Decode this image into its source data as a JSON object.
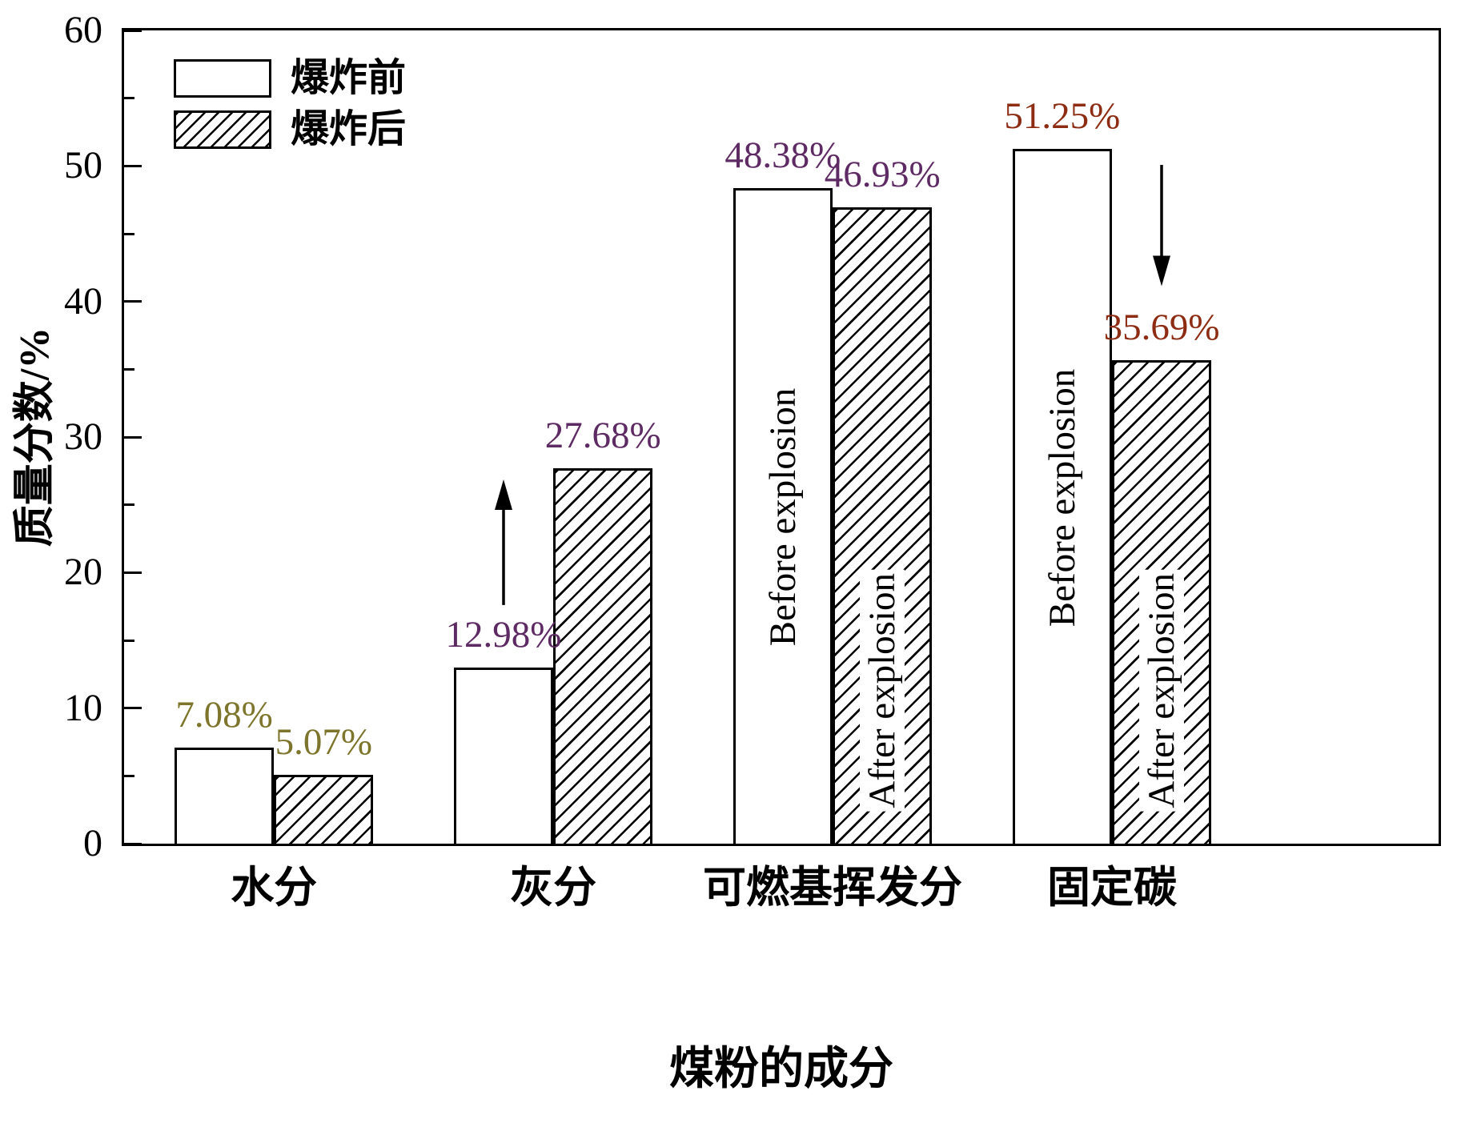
{
  "chart_data": {
    "type": "bar",
    "title": "",
    "xlabel": "煤粉的成分",
    "ylabel": "质量分数/%",
    "ylim": [
      0,
      60
    ],
    "y_ticks": [
      0,
      10,
      20,
      30,
      40,
      50,
      60
    ],
    "y_minor_ticks": [
      5,
      15,
      25,
      35,
      45,
      55
    ],
    "categories": [
      "水分",
      "灰分",
      "可燃基挥发分",
      "固定碳"
    ],
    "series": [
      {
        "name": "爆炸前",
        "style": "open",
        "values": [
          7.08,
          12.98,
          48.38,
          51.25
        ]
      },
      {
        "name": "爆炸后",
        "style": "hatched",
        "values": [
          5.07,
          27.68,
          46.93,
          35.69
        ]
      }
    ],
    "value_labels": [
      {
        "group": 0,
        "series": 0,
        "text": "7.08%",
        "color": "#7d752c"
      },
      {
        "group": 0,
        "series": 1,
        "text": "5.07%",
        "color": "#7d752c"
      },
      {
        "group": 1,
        "series": 0,
        "text": "12.98%",
        "color": "#5e2a63"
      },
      {
        "group": 1,
        "series": 1,
        "text": "27.68%",
        "color": "#5e2a63"
      },
      {
        "group": 2,
        "series": 0,
        "text": "48.38%",
        "color": "#5e2a63"
      },
      {
        "group": 2,
        "series": 1,
        "text": "46.93%",
        "color": "#5e2a63"
      },
      {
        "group": 3,
        "series": 0,
        "text": "51.25%",
        "color": "#8e2c13"
      },
      {
        "group": 3,
        "series": 1,
        "text": "35.69%",
        "color": "#8e2c13"
      }
    ],
    "bar_inner_labels": [
      {
        "group": 2,
        "series": 0,
        "text": "Before explosion",
        "valign": "middle"
      },
      {
        "group": 2,
        "series": 1,
        "text": "After explosion",
        "valign": "bottom"
      },
      {
        "group": 3,
        "series": 0,
        "text": "Before explosion",
        "valign": "middle"
      },
      {
        "group": 3,
        "series": 1,
        "text": "After explosion",
        "valign": "bottom"
      }
    ],
    "trend_arrows": [
      {
        "group": 1,
        "direction": "up"
      },
      {
        "group": 3,
        "direction": "down"
      }
    ],
    "legend": {
      "position": "top-left",
      "entries": [
        "爆炸前",
        "爆炸后"
      ]
    },
    "grid": "off",
    "axis_color": "#000000",
    "bar_border_color": "#000000",
    "background_color": "#ffffff"
  }
}
